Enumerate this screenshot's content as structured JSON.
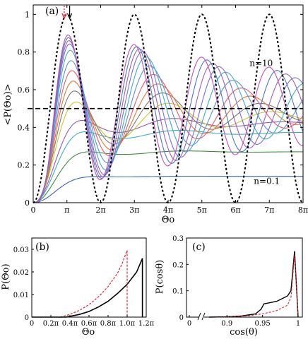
{
  "chart_data": [
    {
      "panel_label": "(a)",
      "type": "line",
      "xlabel": "Θo",
      "ylabel": "<P(Θo)>",
      "xlim": [
        0,
        8
      ],
      "ylim": [
        0,
        1.05
      ],
      "x_unit": "π",
      "xticks": [
        "0",
        "π",
        "2π",
        "3π",
        "4π",
        "5π",
        "6π",
        "7π",
        "8π"
      ],
      "yticks": [
        "0",
        "0.2",
        "0.4",
        "0.6",
        "0.8",
        "1"
      ],
      "annotations": [
        {
          "text": "n=10",
          "x": 7.0,
          "y": 0.74
        },
        {
          "text": "n=0.1",
          "x": 7.0,
          "y": 0.115
        }
      ],
      "reference_line": {
        "y": 0.5,
        "style": "dashed"
      },
      "reference_curve": {
        "style": "dotted",
        "function": "sin^2(x/2)"
      },
      "arrows": [
        {
          "x": 0.92,
          "color": "#e8202a"
        },
        {
          "x": 1.08,
          "color": "#000000"
        }
      ],
      "series_count": 14,
      "series_colors": [
        "#3b64b4",
        "#3f8f3f",
        "#3bb0c8",
        "#9b59b6",
        "#c8c832",
        "#7a7a7a",
        "#e17a2e",
        "#e85a6e",
        "#5a8fd8",
        "#3bb0c8",
        "#7b6fd8",
        "#a05fb8",
        "#4a78c0",
        "#c050c0"
      ],
      "series_limits": [
        0.14,
        0.27,
        0.37,
        0.42,
        0.45,
        0.47,
        0.48,
        0.49,
        0.495,
        0.5,
        0.5,
        0.5,
        0.5,
        0.5
      ]
    },
    {
      "panel_label": "(b)",
      "type": "line",
      "xlabel": "Θo",
      "ylabel": "P(Θo)",
      "xlim": [
        0,
        1.2
      ],
      "ylim": [
        0,
        0.035
      ],
      "x_unit": "π",
      "xticks": [
        "0",
        "0.2π",
        "0.4π",
        "0.6π",
        "0.8π",
        "1.0π",
        "1.2π"
      ],
      "yticks": [
        "0",
        "0.01",
        "0.02",
        "0.03"
      ],
      "series": [
        {
          "style": "solid",
          "color": "#000000",
          "x": [
            0.36,
            0.5,
            0.6,
            0.7,
            0.8,
            0.9,
            1.0,
            1.1,
            1.16,
            1.16
          ],
          "y": [
            0.0,
            0.0012,
            0.0025,
            0.0045,
            0.007,
            0.0105,
            0.0145,
            0.02,
            0.026,
            0.0
          ]
        },
        {
          "style": "dashed",
          "color": "#e8202a",
          "x": [
            0.3,
            0.4,
            0.5,
            0.6,
            0.7,
            0.8,
            0.9,
            0.95,
            1.0,
            1.0
          ],
          "y": [
            0.0,
            0.0012,
            0.003,
            0.0055,
            0.009,
            0.0135,
            0.0195,
            0.024,
            0.0295,
            0.0
          ]
        }
      ]
    },
    {
      "panel_label": "(c)",
      "type": "line",
      "xlabel": "cos(θ)",
      "ylabel": "P(cosθ)",
      "xlim": [
        0.85,
        1.0
      ],
      "ylim": [
        0,
        0.3
      ],
      "xticks": [
        "0",
        "0.9",
        "0.95",
        "1"
      ],
      "yticks": [
        "0",
        "0.1",
        "0.2",
        "0.3"
      ],
      "axis_break": true,
      "series": [
        {
          "style": "solid",
          "color": "#000000",
          "x": [
            0.875,
            0.9,
            0.92,
            0.94,
            0.948,
            0.952,
            0.97,
            0.985,
            0.99,
            0.995,
            0.997,
            1.0
          ],
          "y": [
            0.0,
            0.001,
            0.004,
            0.012,
            0.03,
            0.05,
            0.06,
            0.08,
            0.1,
            0.25,
            0.15,
            0.0
          ]
        },
        {
          "style": "dashed",
          "color": "#e8202a",
          "x": [
            0.875,
            0.9,
            0.93,
            0.95,
            0.97,
            0.985,
            0.99,
            0.995,
            0.997,
            1.0
          ],
          "y": [
            0.0,
            0.001,
            0.005,
            0.012,
            0.025,
            0.045,
            0.075,
            0.235,
            0.14,
            0.0
          ]
        }
      ]
    }
  ]
}
